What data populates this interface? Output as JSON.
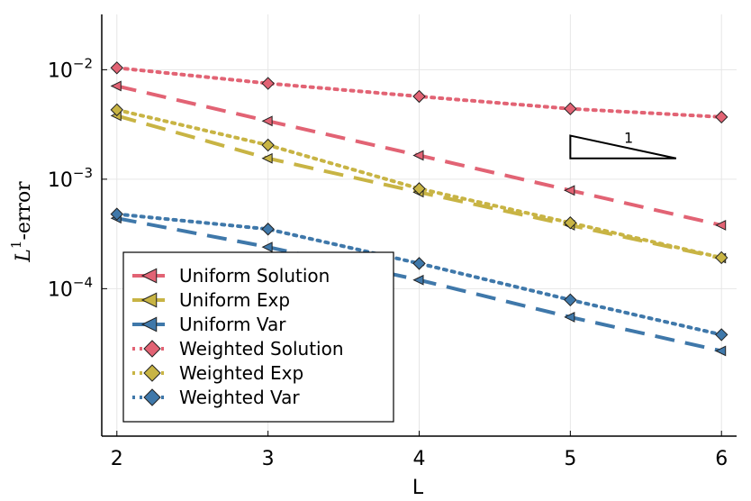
{
  "chart_data": {
    "type": "line",
    "xlabel": "L",
    "ylabel": "-error",
    "ylabel_symbol": "L",
    "ylabel_sup": "1",
    "y_scale": "log",
    "x": [
      2,
      3,
      4,
      5,
      6
    ],
    "xlim": [
      1.9,
      6.1
    ],
    "ylim": [
      4.5e-06,
      0.032
    ],
    "x_ticks": [
      2,
      3,
      4,
      5,
      6
    ],
    "y_ticks": [
      {
        "value": 0.01,
        "base": "10",
        "exp": "−2"
      },
      {
        "value": 0.001,
        "base": "10",
        "exp": "−3"
      },
      {
        "value": 0.0001,
        "base": "10",
        "exp": "−4"
      }
    ],
    "grid": true,
    "legend_position": "bottom-left",
    "series": [
      {
        "name": "Uniform Solution",
        "color": "#e26374",
        "style": "dashed",
        "marker": "triangle-left",
        "values": [
          0.0071,
          0.0034,
          0.00165,
          0.00079,
          0.00038
        ]
      },
      {
        "name": "Uniform Exp",
        "color": "#c8b444",
        "style": "dashed",
        "marker": "triangle-left",
        "values": [
          0.0038,
          0.00155,
          0.00076,
          0.00038,
          0.00019
        ]
      },
      {
        "name": "Uniform Var",
        "color": "#3f78aa",
        "style": "dashed",
        "marker": "triangle-left",
        "values": [
          0.00044,
          0.00024,
          0.00012,
          5.5e-05,
          2.7e-05
        ]
      },
      {
        "name": "Weighted Solution",
        "color": "#e26374",
        "style": "dotted",
        "marker": "diamond",
        "values": [
          0.0104,
          0.0075,
          0.0057,
          0.0044,
          0.0037
        ]
      },
      {
        "name": "Weighted Exp",
        "color": "#c8b444",
        "style": "dotted",
        "marker": "diamond",
        "values": [
          0.0043,
          0.00205,
          0.00082,
          0.0004,
          0.000192
        ]
      },
      {
        "name": "Weighted Var",
        "color": "#3f78aa",
        "style": "dotted",
        "marker": "diamond",
        "values": [
          0.00048,
          0.00035,
          0.00017,
          7.9e-05,
          3.8e-05
        ]
      }
    ],
    "slope_triangle": {
      "label": "1",
      "x_start": 5.0,
      "x_end": 5.7,
      "y_top": 0.0025,
      "y_bottom": 0.00155
    }
  }
}
